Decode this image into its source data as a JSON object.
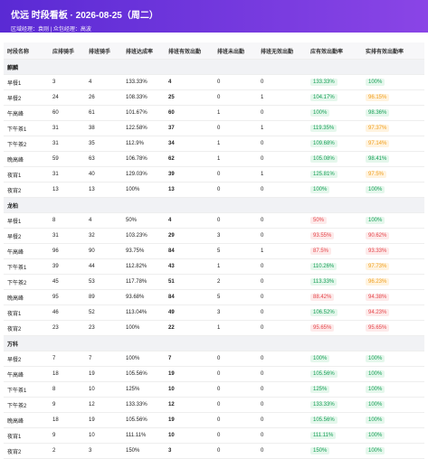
{
  "header": {
    "title": "优远 时段看板 · 2026-08-25（周二）",
    "subtitle": "区域经理：袁刚 | 众包经理：高波"
  },
  "table": {
    "columns": [
      "时段名称",
      "应排骑手",
      "排班骑手",
      "排班达成率",
      "排班有效出勤",
      "排班未出勤",
      "排班无效出勤",
      "应有效出勤率",
      "实排有效出勤率"
    ],
    "groups": [
      {
        "name": "麒麟",
        "rows": [
          [
            "早餐1",
            "3",
            "4",
            "133.33%",
            "4",
            "0",
            "0",
            "133.33%",
            "100%"
          ],
          [
            "早餐2",
            "24",
            "26",
            "108.33%",
            "25",
            "0",
            "1",
            "104.17%",
            "96.15%"
          ],
          [
            "午高峰",
            "60",
            "61",
            "101.67%",
            "60",
            "1",
            "0",
            "100%",
            "98.36%"
          ],
          [
            "下午茶1",
            "31",
            "38",
            "122.58%",
            "37",
            "0",
            "1",
            "119.35%",
            "97.37%"
          ],
          [
            "下午茶2",
            "31",
            "35",
            "112.9%",
            "34",
            "1",
            "0",
            "109.68%",
            "97.14%"
          ],
          [
            "晚高峰",
            "59",
            "63",
            "106.78%",
            "62",
            "1",
            "0",
            "105.08%",
            "98.41%"
          ],
          [
            "夜宵1",
            "31",
            "40",
            "129.03%",
            "39",
            "0",
            "1",
            "125.81%",
            "97.5%"
          ],
          [
            "夜宵2",
            "13",
            "13",
            "100%",
            "13",
            "0",
            "0",
            "100%",
            "100%"
          ]
        ]
      },
      {
        "name": "龙柏",
        "rows": [
          [
            "早餐1",
            "8",
            "4",
            "50%",
            "4",
            "0",
            "0",
            "50%",
            "100%"
          ],
          [
            "早餐2",
            "31",
            "32",
            "103.23%",
            "29",
            "3",
            "0",
            "93.55%",
            "90.62%"
          ],
          [
            "午高峰",
            "96",
            "90",
            "93.75%",
            "84",
            "5",
            "1",
            "87.5%",
            "93.33%"
          ],
          [
            "下午茶1",
            "39",
            "44",
            "112.82%",
            "43",
            "1",
            "0",
            "110.26%",
            "97.73%"
          ],
          [
            "下午茶2",
            "45",
            "53",
            "117.78%",
            "51",
            "2",
            "0",
            "113.33%",
            "96.23%"
          ],
          [
            "晚高峰",
            "95",
            "89",
            "93.68%",
            "84",
            "5",
            "0",
            "88.42%",
            "94.38%"
          ],
          [
            "夜宵1",
            "46",
            "52",
            "113.04%",
            "49",
            "3",
            "0",
            "106.52%",
            "94.23%"
          ],
          [
            "夜宵2",
            "23",
            "23",
            "100%",
            "22",
            "1",
            "0",
            "95.65%",
            "95.65%"
          ]
        ]
      },
      {
        "name": "万科",
        "rows": [
          [
            "早餐2",
            "7",
            "7",
            "100%",
            "7",
            "0",
            "0",
            "100%",
            "100%"
          ],
          [
            "午高峰",
            "18",
            "19",
            "105.56%",
            "19",
            "0",
            "0",
            "105.56%",
            "100%"
          ],
          [
            "下午茶1",
            "8",
            "10",
            "125%",
            "10",
            "0",
            "0",
            "125%",
            "100%"
          ],
          [
            "下午茶2",
            "9",
            "12",
            "133.33%",
            "12",
            "0",
            "0",
            "133.33%",
            "100%"
          ],
          [
            "晚高峰",
            "18",
            "19",
            "105.56%",
            "19",
            "0",
            "0",
            "105.56%",
            "100%"
          ],
          [
            "夜宵1",
            "9",
            "10",
            "111.11%",
            "10",
            "0",
            "0",
            "111.11%",
            "100%"
          ],
          [
            "夜宵2",
            "2",
            "3",
            "150%",
            "3",
            "0",
            "0",
            "150%",
            "100%"
          ]
        ]
      }
    ]
  }
}
